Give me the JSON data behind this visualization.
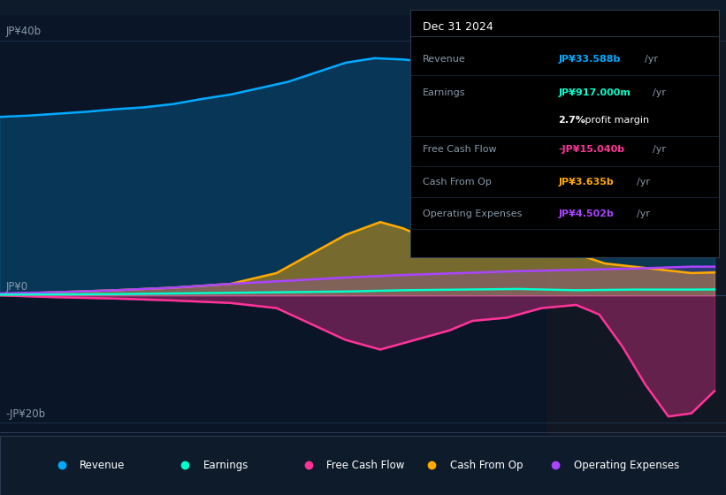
{
  "bg_color": "#0d1b2a",
  "plot_bg_color": "#0a1628",
  "colors": {
    "revenue": "#00aaff",
    "earnings": "#00ffcc",
    "free_cash_flow": "#ff3399",
    "cash_from_op": "#ffaa00",
    "operating_expenses": "#aa44ff"
  },
  "legend_labels": [
    "Revenue",
    "Earnings",
    "Free Cash Flow",
    "Cash From Op",
    "Operating Expenses"
  ],
  "ylim": [
    -22,
    44
  ],
  "xlim": [
    2019.0,
    2025.3
  ],
  "xticks": [
    2020,
    2021,
    2022,
    2023,
    2024
  ],
  "ytick_labels": [
    "JP¥40b",
    "JP¥0",
    "-JP¥20b"
  ],
  "ytick_vals": [
    40,
    0,
    -20
  ],
  "x_highlight_start": 2023.75,
  "tooltip": {
    "date": "Dec 31 2024",
    "rows": [
      {
        "label": "Revenue",
        "value": "JP¥33.588b",
        "unit": "/yr",
        "color": "#00aaff"
      },
      {
        "label": "Earnings",
        "value": "JP¥917.000m",
        "unit": "/yr",
        "color": "#00ffcc"
      },
      {
        "label": "",
        "value": "2.7%",
        "unit": " profit margin",
        "color": "white"
      },
      {
        "label": "Free Cash Flow",
        "value": "-JP¥15.040b",
        "unit": "/yr",
        "color": "#ff3399"
      },
      {
        "label": "Cash From Op",
        "value": "JP¥3.635b",
        "unit": "/yr",
        "color": "#ffaa00"
      },
      {
        "label": "Operating Expenses",
        "value": "JP¥4.502b",
        "unit": "/yr",
        "color": "#aa44ff"
      }
    ]
  },
  "revenue": {
    "x": [
      2019.0,
      2019.25,
      2019.5,
      2019.75,
      2020.0,
      2020.25,
      2020.5,
      2020.75,
      2021.0,
      2021.25,
      2021.5,
      2021.75,
      2022.0,
      2022.25,
      2022.5,
      2022.75,
      2023.0,
      2023.25,
      2023.5,
      2023.75,
      2024.0,
      2024.25,
      2024.5,
      2024.75,
      2025.0,
      2025.2
    ],
    "y": [
      28.0,
      28.2,
      28.5,
      28.8,
      29.2,
      29.5,
      30.0,
      30.8,
      31.5,
      32.5,
      33.5,
      35.0,
      36.5,
      37.2,
      37.0,
      36.5,
      36.0,
      35.5,
      35.8,
      36.2,
      35.5,
      34.5,
      33.5,
      33.0,
      33.0,
      33.5
    ]
  },
  "earnings": {
    "x": [
      2019.0,
      2019.5,
      2020.0,
      2020.5,
      2021.0,
      2021.5,
      2022.0,
      2022.5,
      2023.0,
      2023.5,
      2024.0,
      2024.5,
      2025.0,
      2025.2
    ],
    "y": [
      0.1,
      0.15,
      0.2,
      0.3,
      0.4,
      0.5,
      0.6,
      0.8,
      0.9,
      1.0,
      0.8,
      0.9,
      0.9,
      0.92
    ]
  },
  "free_cash_flow": {
    "x": [
      2019.0,
      2019.5,
      2020.0,
      2020.5,
      2021.0,
      2021.4,
      2021.7,
      2022.0,
      2022.3,
      2022.6,
      2022.9,
      2023.1,
      2023.4,
      2023.7,
      2024.0,
      2024.2,
      2024.4,
      2024.6,
      2024.8,
      2025.0,
      2025.2
    ],
    "y": [
      0.0,
      -0.3,
      -0.5,
      -0.8,
      -1.2,
      -2.0,
      -4.5,
      -7.0,
      -8.5,
      -7.0,
      -5.5,
      -4.0,
      -3.5,
      -2.0,
      -1.5,
      -3.0,
      -8.0,
      -14.0,
      -19.0,
      -18.5,
      -15.0
    ]
  },
  "cash_from_op": {
    "x": [
      2019.0,
      2019.5,
      2020.0,
      2020.5,
      2021.0,
      2021.4,
      2021.7,
      2022.0,
      2022.3,
      2022.5,
      2022.75,
      2023.0,
      2023.25,
      2023.5,
      2023.75,
      2024.0,
      2024.25,
      2024.5,
      2024.75,
      2025.0,
      2025.2
    ],
    "y": [
      0.2,
      0.5,
      0.8,
      1.2,
      1.8,
      3.5,
      6.5,
      9.5,
      11.5,
      10.5,
      8.5,
      7.0,
      8.0,
      9.5,
      8.5,
      6.5,
      5.0,
      4.5,
      4.0,
      3.5,
      3.6
    ]
  },
  "operating_expenses": {
    "x": [
      2019.0,
      2019.5,
      2020.0,
      2020.5,
      2021.0,
      2021.5,
      2022.0,
      2022.5,
      2023.0,
      2023.5,
      2024.0,
      2024.5,
      2025.0,
      2025.2
    ],
    "y": [
      0.3,
      0.5,
      0.8,
      1.2,
      1.8,
      2.3,
      2.8,
      3.2,
      3.5,
      3.8,
      4.0,
      4.2,
      4.5,
      4.5
    ]
  }
}
